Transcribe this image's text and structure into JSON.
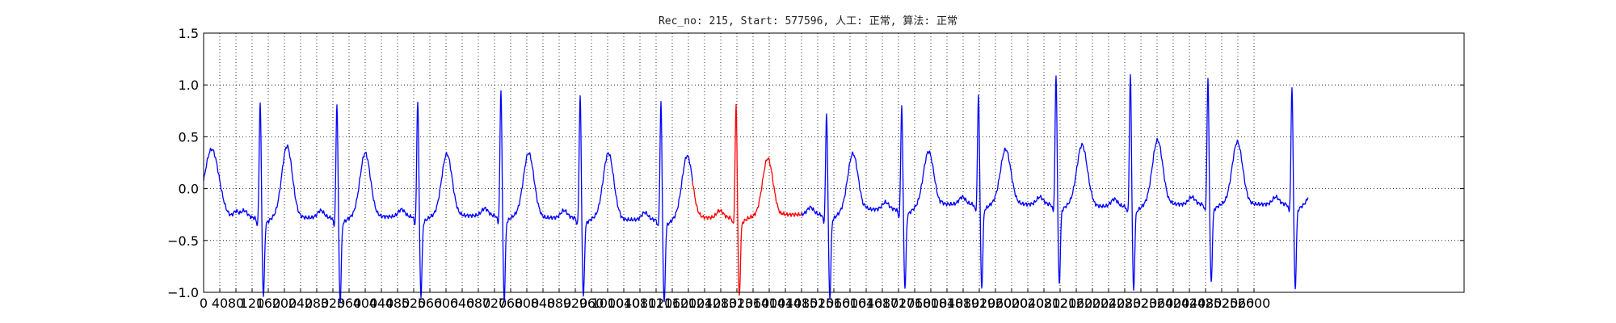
{
  "chart_data": {
    "type": "line",
    "title": "Rec_no: 215, Start: 577596, 人工: 正常, 算法: 正常",
    "xlabel": "",
    "ylabel": "",
    "xlim": [
      0,
      1560
    ],
    "ylim": [
      -1.0,
      1.5
    ],
    "x_tick_step": 20,
    "x_tick_labels": [
      "0",
      "40",
      "80",
      "120",
      "160",
      "200",
      "240",
      "280",
      "320",
      "360",
      "400",
      "440",
      "480",
      "520",
      "560",
      "600",
      "640",
      "680",
      "720",
      "760",
      "800",
      "840",
      "880",
      "920",
      "960",
      "1000",
      "1040",
      "1080",
      "1120",
      "1160",
      "1200",
      "1240",
      "1280",
      "1320",
      "1360",
      "1400",
      "1440",
      "1480",
      "1520",
      "1560",
      "1600",
      "1640",
      "1680",
      "1720",
      "1760",
      "1800",
      "1840",
      "1880",
      "1920",
      "1960",
      "2000",
      "2040",
      "2080",
      "2120",
      "2160",
      "2200",
      "2240",
      "2280",
      "2320",
      "2360",
      "2400",
      "2440",
      "2480",
      "2520",
      "2560",
      "2600"
    ],
    "y_tick_labels": [
      "1.5",
      "1.0",
      "0.5",
      "0.0",
      "−0.5",
      "−1.0"
    ],
    "y_ticks": [
      1.5,
      1.0,
      0.5,
      0.0,
      -0.5,
      -1.0
    ],
    "grid": true,
    "colors": {
      "normal": "#0000ff",
      "highlight": "#ff0000"
    },
    "r_peak_x": [
      70,
      165,
      265,
      368,
      466,
      566,
      659,
      771,
      864,
      959,
      1055,
      1147,
      1243,
      1347
    ],
    "r_peak_amplitudes": [
      0.87,
      0.85,
      0.89,
      0.99,
      0.93,
      0.86,
      0.83,
      0.76,
      0.84,
      0.93,
      1.12,
      1.13,
      1.08,
      1.01
    ],
    "baselines": [
      -0.28,
      -0.28,
      -0.27,
      -0.26,
      -0.28,
      -0.3,
      -0.28,
      -0.25,
      -0.2,
      -0.15,
      -0.15,
      -0.17,
      -0.15,
      -0.15
    ],
    "t_wave_peaks": [
      0.33,
      0.26,
      0.25,
      0.27,
      0.27,
      0.23,
      0.2,
      0.24,
      0.26,
      0.3,
      0.35,
      0.38,
      0.37,
      0.35
    ],
    "highlight_range": [
      605,
      740
    ],
    "end_x": 1367
  }
}
